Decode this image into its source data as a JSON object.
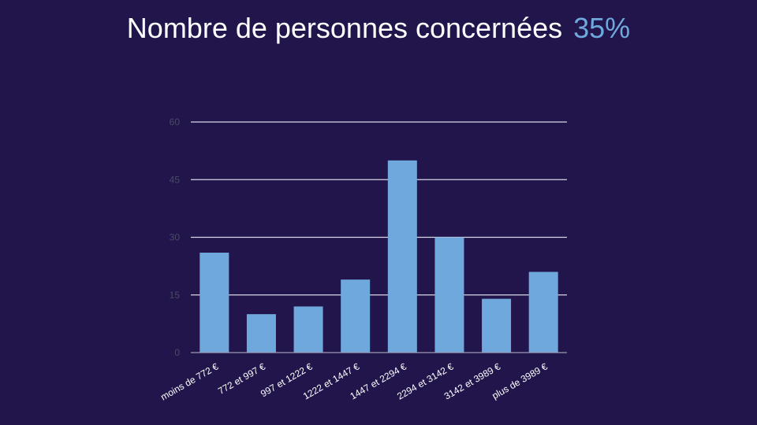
{
  "header": {
    "title": "Nombre de personnes concernées",
    "percent": "35%"
  },
  "colors": {
    "background": "#21154c",
    "bar": "#6fa8dc",
    "title": "#ffffff",
    "accent": "#6fa8dc"
  },
  "chart_data": {
    "type": "bar",
    "title": "",
    "xlabel": "",
    "ylabel": "",
    "categories": [
      "moins de 772 €",
      "772 et 997 €",
      "997 et 1222 €",
      "1222 et 1447 €",
      "1447 et 2294 €",
      "2294 et 3142 €",
      "3142 et 3989 €",
      "plus de 3989 €"
    ],
    "values": [
      26,
      10,
      12,
      19,
      50,
      30,
      14,
      21
    ],
    "ylim": [
      0,
      60
    ],
    "yticks": [
      0,
      15,
      30,
      45,
      60
    ],
    "grid": true,
    "legend": "none"
  }
}
